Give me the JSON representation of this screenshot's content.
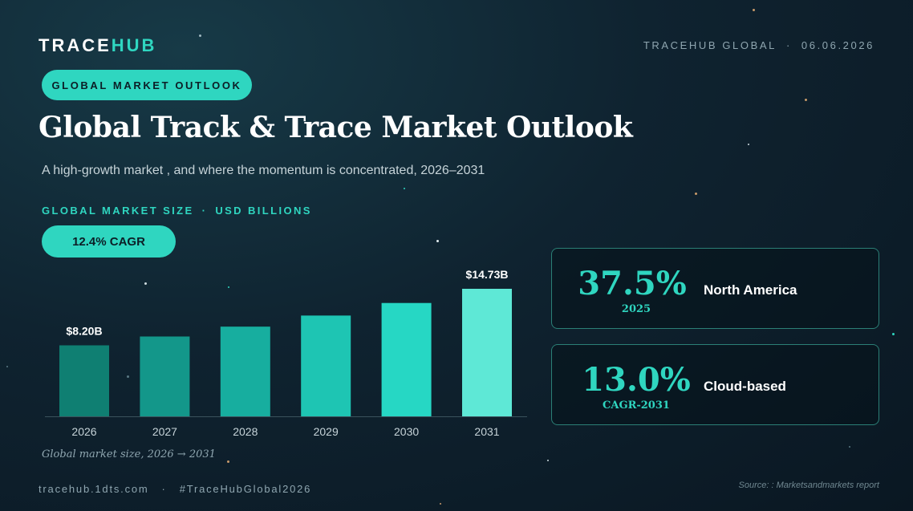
{
  "brand": {
    "name_a": "TRACE",
    "name_b": "HUB"
  },
  "header": {
    "org": "TRACEHUB GLOBAL",
    "separator": "·",
    "date": "06.06.2026"
  },
  "badge": "GLOBAL MARKET OUTLOOK",
  "title": "Global Track & Trace Market Outlook",
  "subtitle": "A high-growth market , and where the momentum is concentrated, 2026–2031",
  "section": {
    "label": "GLOBAL MARKET SIZE",
    "sep": "·",
    "unit": "USD BILLIONS"
  },
  "cagr_pill": "12.4% CAGR",
  "chart_data": {
    "type": "bar",
    "categories": [
      "2026",
      "2027",
      "2028",
      "2029",
      "2030",
      "2031"
    ],
    "values": [
      8.2,
      9.22,
      10.36,
      11.64,
      13.09,
      14.73
    ],
    "data_labels": [
      "$8.20B",
      "",
      "",
      "",
      "",
      "$14.73B"
    ],
    "colors": [
      "#0f7f72",
      "#13978a",
      "#17ae9f",
      "#1ec5b3",
      "#26d7c4",
      "#5ee8d6"
    ],
    "ylim": [
      0,
      16
    ],
    "xlabel": "",
    "ylabel": "",
    "grid": false
  },
  "caption": "Global market size, 2026 → 2031",
  "cards": [
    {
      "big": "37.5%",
      "small": "2025",
      "label": "North America"
    },
    {
      "big": "13.0%",
      "small": "CAGR-2031",
      "label": "Cloud-based"
    }
  ],
  "footer": {
    "site": "tracehub.1dts.com",
    "sep": "·",
    "hashtag": "#TraceHubGlobal2026"
  },
  "source": "Source: : Marketsandmarkets report",
  "accent_color": "#2fd6c0",
  "background_color": "#0f2330"
}
